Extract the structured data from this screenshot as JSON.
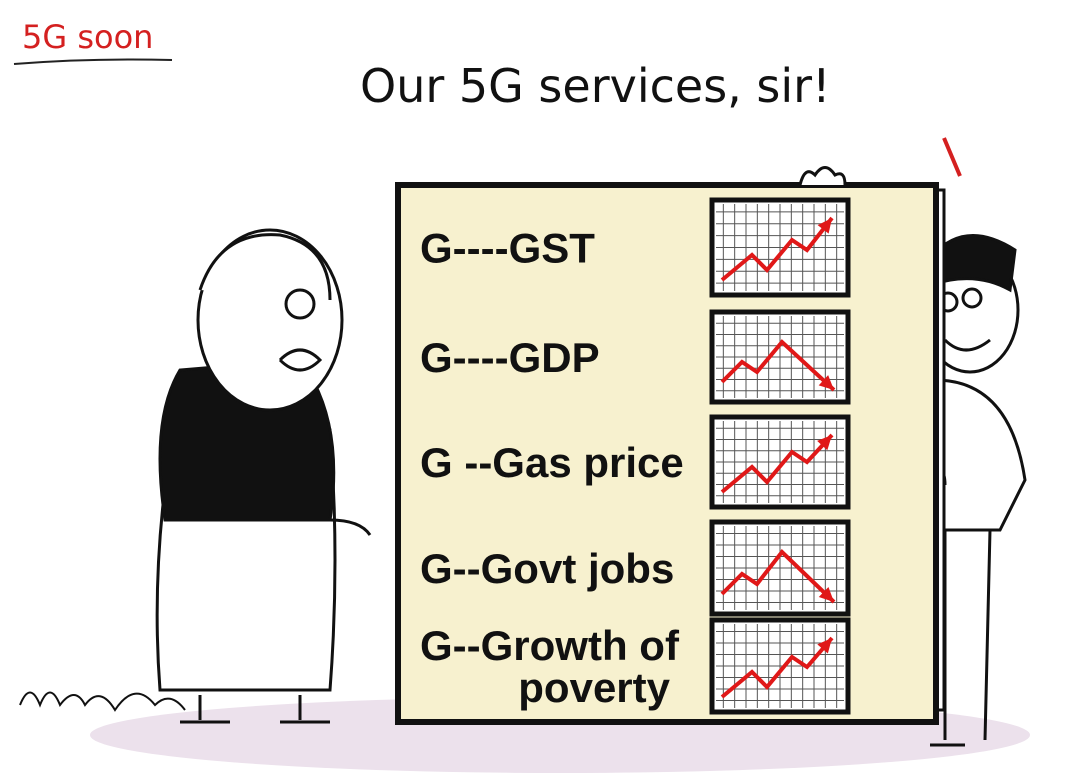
{
  "tag": "5G soon",
  "caption": "Our 5G services, sir!",
  "board": {
    "rows": [
      {
        "lines": [
          "G----GST"
        ],
        "trend": "up"
      },
      {
        "lines": [
          "G----GDP"
        ],
        "trend": "down"
      },
      {
        "lines": [
          "G --Gas price"
        ],
        "trend": "up"
      },
      {
        "lines": [
          "G--Govt jobs"
        ],
        "trend": "down"
      },
      {
        "lines": [
          "G--Growth of",
          "poverty"
        ],
        "trend": "up"
      }
    ]
  }
}
